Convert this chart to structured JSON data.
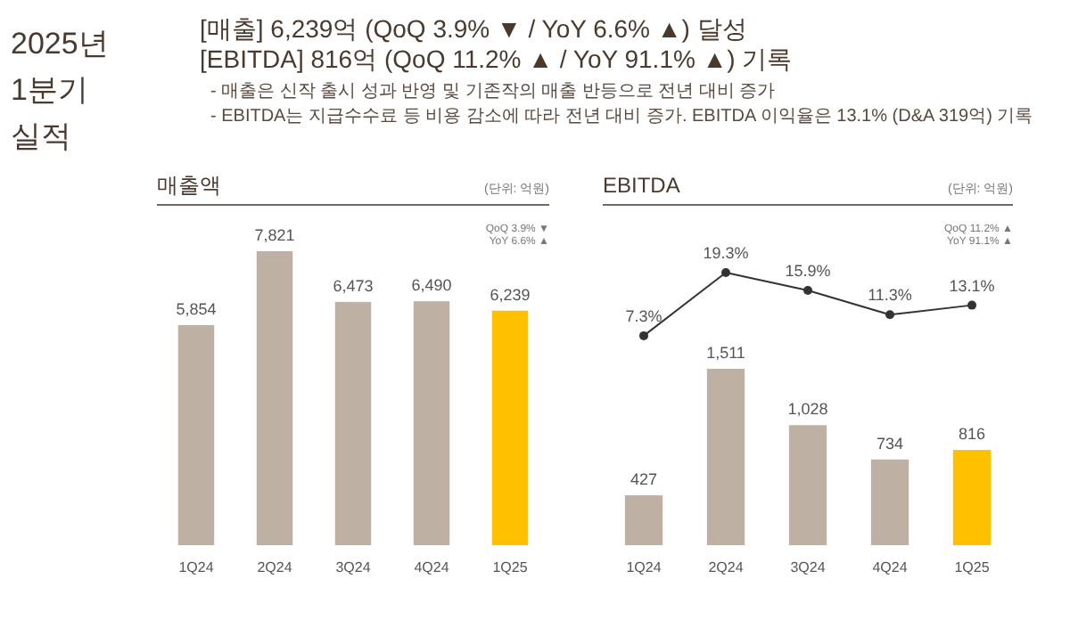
{
  "chart_data": [
    {
      "type": "other",
      "title": "2025년 1분기 실적",
      "annotations": [
        "[매출] 6,239억 (QoQ 3.9% ▼ / YoY 6.6% ▲) 달성",
        "[EBITDA] 816억 (QoQ 11.2% ▲ / YoY 91.1% ▲) 기록",
        "- 매출은 신작 출시 성과 반영 및 기존작의 매출 반등으로 전년 대비 증가",
        "- EBITDA는 지급수수료 등 비용 감소에 따라 전년 대비 증가. EBITDA 이익율은 13.1% (D&A 319억) 기록"
      ]
    },
    {
      "type": "bar",
      "title": "매출액",
      "annotations": [
        "(단위: 억원)",
        "QoQ 3.9% ▼",
        "YoY 6.6% ▲"
      ],
      "categories": [
        "1Q24",
        "2Q24",
        "3Q24",
        "4Q24",
        "1Q25"
      ],
      "series": [
        {
          "type": "bar",
          "values": [
            5854,
            7821,
            6473,
            6490,
            6239
          ],
          "colors": [
            "#bfb0a4",
            "#bfb0a4",
            "#bfb0a4",
            "#bfb0a4",
            "#ffc000"
          ],
          "value_labels": [
            "5,854",
            "7,821",
            "6,473",
            "6,490",
            "6,239"
          ]
        }
      ]
    },
    {
      "type": "line",
      "title": "EBITDA",
      "annotations": [
        "(단위: 억원)",
        "QoQ 11.2% ▲",
        "YoY 91.1% ▲"
      ],
      "categories": [
        null,
        null,
        null,
        null,
        null
      ],
      "series": [
        {
          "color": "#333333",
          "marker": "circle",
          "values": [
            7.3,
            19.3,
            15.9,
            11.3,
            13.1
          ],
          "value_labels": [
            "7.3%",
            "19.3%",
            "15.9%",
            "11.3%",
            "13.1%"
          ]
        }
      ]
    },
    {
      "type": "bar",
      "categories": [
        "1Q24",
        "2Q24",
        "3Q24",
        "4Q24",
        "1Q25"
      ],
      "series": [
        {
          "type": "bar",
          "values": [
            427,
            1511,
            1028,
            734,
            816
          ],
          "colors": [
            "#bfb0a4",
            "#bfb0a4",
            "#bfb0a4",
            "#bfb0a4",
            "#ffc000"
          ],
          "value_labels": [
            "427",
            "1,511",
            "1,028",
            "734",
            "816"
          ]
        }
      ]
    }
  ]
}
